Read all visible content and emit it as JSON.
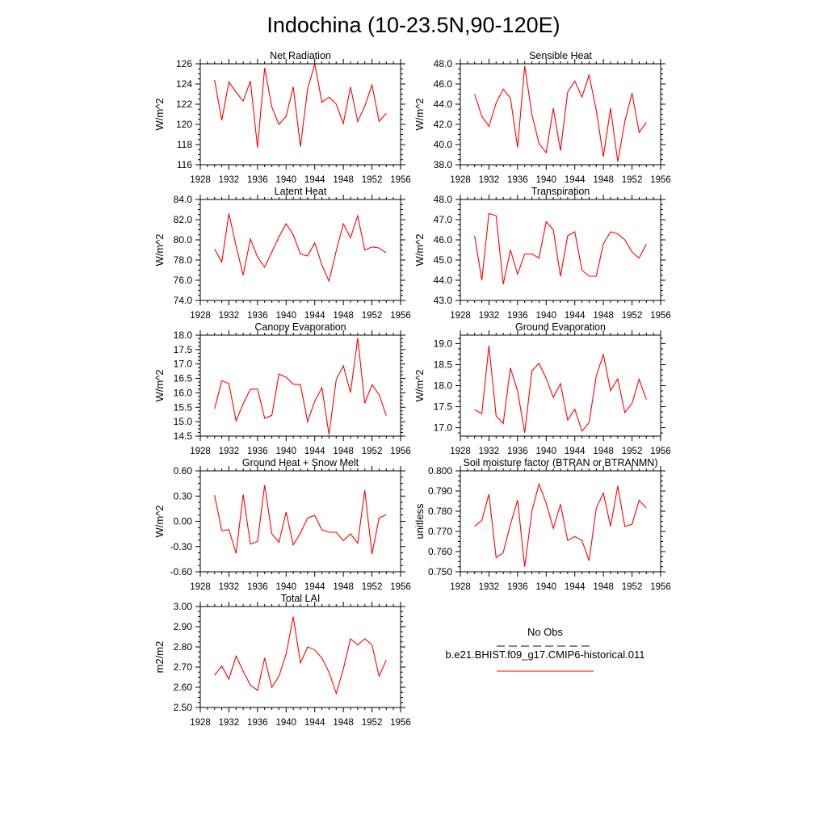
{
  "figure": {
    "title": "Indochina (10-23.5N,90-120E)",
    "legend": {
      "entries": [
        {
          "label": "No Obs",
          "color": "#000080",
          "dash": "dashed"
        },
        {
          "label": "b.e21.BHIST.f09_g17.CMIP6-historical.011",
          "color": "#ff0000",
          "dash": "solid"
        }
      ]
    },
    "series_color": "#ff0000"
  },
  "chart_data": [
    {
      "type": "line",
      "title": "Net Radiation",
      "ylabel": "W/m^2",
      "xlim": [
        1928,
        1956
      ],
      "ylim": [
        116,
        126
      ],
      "xticks": [
        "1928",
        "1932",
        "1936",
        "1940",
        "1944",
        "1948",
        "1952",
        "1956"
      ],
      "yticks": [
        "116",
        "118",
        "120",
        "122",
        "124",
        "126"
      ],
      "x": [
        1930,
        1931,
        1932,
        1933,
        1934,
        1935,
        1936,
        1937,
        1938,
        1939,
        1940,
        1941,
        1942,
        1943,
        1944,
        1945,
        1946,
        1947,
        1948,
        1949,
        1950,
        1951,
        1952,
        1953,
        1954
      ],
      "values": [
        124.4,
        120.4,
        124.2,
        123.2,
        122.3,
        124.3,
        117.7,
        125.6,
        121.7,
        120.0,
        120.8,
        123.7,
        117.8,
        123.5,
        126.0,
        122.2,
        122.7,
        122.0,
        120.1,
        123.7,
        120.3,
        121.8,
        123.9,
        120.3,
        121.1
      ],
      "grid": false
    },
    {
      "type": "line",
      "title": "Sensible Heat",
      "ylabel": "W/m^2",
      "xlim": [
        1928,
        1956
      ],
      "ylim": [
        38,
        48
      ],
      "xticks": [
        "1928",
        "1932",
        "1936",
        "1940",
        "1944",
        "1948",
        "1952",
        "1956"
      ],
      "yticks": [
        "38.0",
        "40.0",
        "42.0",
        "44.0",
        "46.0",
        "48.0"
      ],
      "x": [
        1930,
        1931,
        1932,
        1933,
        1934,
        1935,
        1936,
        1937,
        1938,
        1939,
        1940,
        1941,
        1942,
        1943,
        1944,
        1945,
        1946,
        1947,
        1948,
        1949,
        1950,
        1951,
        1952,
        1953,
        1954
      ],
      "values": [
        45.0,
        42.8,
        41.8,
        44.1,
        45.5,
        44.6,
        39.7,
        47.8,
        43.0,
        40.1,
        39.2,
        43.6,
        39.4,
        45.2,
        46.3,
        44.7,
        46.9,
        43.4,
        38.8,
        43.6,
        38.3,
        42.3,
        45.1,
        41.2,
        42.2
      ],
      "grid": false
    },
    {
      "type": "line",
      "title": "Latent Heat",
      "ylabel": "W/m^2",
      "xlim": [
        1928,
        1956
      ],
      "ylim": [
        74,
        84
      ],
      "xticks": [
        "1928",
        "1932",
        "1936",
        "1940",
        "1944",
        "1948",
        "1952",
        "1956"
      ],
      "yticks": [
        "74.0",
        "76.0",
        "78.0",
        "80.0",
        "82.0",
        "84.0"
      ],
      "x": [
        1930,
        1931,
        1932,
        1933,
        1934,
        1935,
        1936,
        1937,
        1938,
        1939,
        1940,
        1941,
        1942,
        1943,
        1944,
        1945,
        1946,
        1947,
        1948,
        1949,
        1950,
        1951,
        1952,
        1953,
        1954
      ],
      "values": [
        79.1,
        77.8,
        82.6,
        79.4,
        76.5,
        80.1,
        78.3,
        77.3,
        78.8,
        80.3,
        81.6,
        80.5,
        78.6,
        78.4,
        79.7,
        77.5,
        75.9,
        78.9,
        81.6,
        80.2,
        82.4,
        79.0,
        79.3,
        79.2,
        78.7
      ],
      "grid": false
    },
    {
      "type": "line",
      "title": "Transpiration",
      "ylabel": "W/m^2",
      "xlim": [
        1928,
        1956
      ],
      "ylim": [
        43,
        48
      ],
      "xticks": [
        "1928",
        "1932",
        "1936",
        "1940",
        "1944",
        "1948",
        "1952",
        "1956"
      ],
      "yticks": [
        "43.0",
        "44.0",
        "45.0",
        "46.0",
        "47.0",
        "48.0"
      ],
      "x": [
        1930,
        1931,
        1932,
        1933,
        1934,
        1935,
        1936,
        1937,
        1938,
        1939,
        1940,
        1941,
        1942,
        1943,
        1944,
        1945,
        1946,
        1947,
        1948,
        1949,
        1950,
        1951,
        1952,
        1953,
        1954
      ],
      "values": [
        46.2,
        44.0,
        47.3,
        47.2,
        43.8,
        45.5,
        44.3,
        45.3,
        45.3,
        45.1,
        46.9,
        46.5,
        44.2,
        46.2,
        46.4,
        44.5,
        44.2,
        44.2,
        45.8,
        46.4,
        46.3,
        46.0,
        45.4,
        45.1,
        45.8
      ],
      "grid": false
    },
    {
      "type": "line",
      "title": "Canopy Evaporation",
      "ylabel": "W/m^2",
      "xlim": [
        1928,
        1956
      ],
      "ylim": [
        14.5,
        18.0
      ],
      "xticks": [
        "1928",
        "1932",
        "1936",
        "1940",
        "1944",
        "1948",
        "1952",
        "1956"
      ],
      "yticks": [
        "14.5",
        "15.0",
        "15.5",
        "16.0",
        "16.5",
        "17.0",
        "17.5",
        "18.0"
      ],
      "x": [
        1930,
        1931,
        1932,
        1933,
        1934,
        1935,
        1936,
        1937,
        1938,
        1939,
        1940,
        1941,
        1942,
        1943,
        1944,
        1945,
        1946,
        1947,
        1948,
        1949,
        1950,
        1951,
        1952,
        1953,
        1954
      ],
      "values": [
        15.45,
        16.42,
        16.32,
        15.03,
        15.62,
        16.13,
        16.13,
        15.12,
        15.22,
        16.65,
        16.54,
        16.3,
        16.28,
        15.0,
        15.71,
        16.18,
        14.55,
        16.46,
        16.94,
        16.01,
        17.9,
        15.64,
        16.28,
        15.94,
        15.21
      ],
      "grid": false
    },
    {
      "type": "line",
      "title": "Ground Evaporation",
      "ylabel": "W/m^2",
      "xlim": [
        1928,
        1956
      ],
      "ylim": [
        16.8,
        19.2
      ],
      "xticks": [
        "1928",
        "1932",
        "1936",
        "1940",
        "1944",
        "1948",
        "1952",
        "1956"
      ],
      "yticks": [
        "17.0",
        "17.5",
        "18.0",
        "18.5",
        "19.0"
      ],
      "x": [
        1930,
        1931,
        1932,
        1933,
        1934,
        1935,
        1936,
        1937,
        1938,
        1939,
        1940,
        1941,
        1942,
        1943,
        1944,
        1945,
        1946,
        1947,
        1948,
        1949,
        1950,
        1951,
        1952,
        1953,
        1954
      ],
      "values": [
        17.43,
        17.33,
        18.95,
        17.28,
        17.1,
        18.42,
        17.87,
        16.88,
        18.35,
        18.53,
        18.17,
        17.72,
        18.05,
        17.18,
        17.44,
        16.92,
        17.12,
        18.23,
        18.74,
        17.88,
        18.16,
        17.36,
        17.58,
        18.15,
        17.67
      ],
      "grid": false
    },
    {
      "type": "line",
      "title": "Ground Heat + Snow Melt",
      "ylabel": "W/m^2",
      "xlim": [
        1928,
        1956
      ],
      "ylim": [
        -0.6,
        0.6
      ],
      "xticks": [
        "1928",
        "1932",
        "1936",
        "1940",
        "1944",
        "1948",
        "1952",
        "1956"
      ],
      "yticks": [
        "-0.60",
        "-0.30",
        "0.00",
        "0.30",
        "0.60"
      ],
      "x": [
        1930,
        1931,
        1932,
        1933,
        1934,
        1935,
        1936,
        1937,
        1938,
        1939,
        1940,
        1941,
        1942,
        1943,
        1944,
        1945,
        1946,
        1947,
        1948,
        1949,
        1950,
        1951,
        1952,
        1953,
        1954
      ],
      "values": [
        0.31,
        -0.11,
        -0.1,
        -0.38,
        0.32,
        -0.27,
        -0.24,
        0.43,
        -0.15,
        -0.25,
        0.11,
        -0.28,
        -0.14,
        0.04,
        0.07,
        -0.1,
        -0.13,
        -0.13,
        -0.23,
        -0.15,
        -0.26,
        0.37,
        -0.39,
        0.04,
        0.08
      ],
      "grid": false
    },
    {
      "type": "line",
      "title": "Soil moisture factor (BTRAN or BTRANMN)",
      "ylabel": "unitless",
      "xlim": [
        1928,
        1956
      ],
      "ylim": [
        0.75,
        0.8
      ],
      "xticks": [
        "1928",
        "1932",
        "1936",
        "1940",
        "1944",
        "1948",
        "1952",
        "1956"
      ],
      "yticks": [
        "0.750",
        "0.760",
        "0.770",
        "0.780",
        "0.790",
        "0.800"
      ],
      "x": [
        1930,
        1931,
        1932,
        1933,
        1934,
        1935,
        1936,
        1937,
        1938,
        1939,
        1940,
        1941,
        1942,
        1943,
        1944,
        1945,
        1946,
        1947,
        1948,
        1949,
        1950,
        1951,
        1952,
        1953,
        1954
      ],
      "values": [
        0.7725,
        0.7755,
        0.7885,
        0.757,
        0.7595,
        0.7735,
        0.7855,
        0.7525,
        0.78,
        0.7935,
        0.784,
        0.7715,
        0.7835,
        0.7655,
        0.7675,
        0.7655,
        0.7555,
        0.7815,
        0.789,
        0.7725,
        0.7925,
        0.7725,
        0.7735,
        0.7855,
        0.7815
      ],
      "grid": false
    },
    {
      "type": "line",
      "title": "Total LAI",
      "ylabel": "m2/m2",
      "xlim": [
        1928,
        1956
      ],
      "ylim": [
        2.5,
        3.0
      ],
      "xticks": [
        "1928",
        "1932",
        "1936",
        "1940",
        "1944",
        "1948",
        "1952",
        "1956"
      ],
      "yticks": [
        "2.50",
        "2.60",
        "2.70",
        "2.80",
        "2.90",
        "3.00"
      ],
      "x": [
        1930,
        1931,
        1932,
        1933,
        1934,
        1935,
        1936,
        1937,
        1938,
        1939,
        1940,
        1941,
        1942,
        1943,
        1944,
        1945,
        1946,
        1947,
        1948,
        1949,
        1950,
        1951,
        1952,
        1953,
        1954
      ],
      "values": [
        2.66,
        2.705,
        2.64,
        2.755,
        2.68,
        2.61,
        2.585,
        2.745,
        2.6,
        2.655,
        2.765,
        2.95,
        2.72,
        2.8,
        2.785,
        2.745,
        2.675,
        2.57,
        2.69,
        2.84,
        2.81,
        2.84,
        2.81,
        2.655,
        2.735
      ],
      "grid": false
    }
  ]
}
